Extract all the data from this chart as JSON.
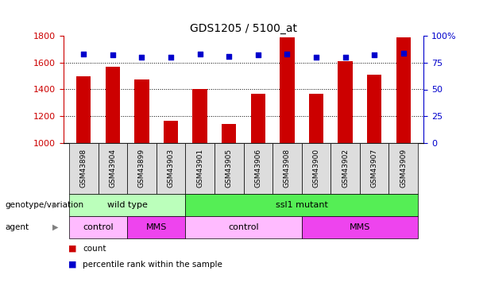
{
  "title": "GDS1205 / 5100_at",
  "samples": [
    "GSM43898",
    "GSM43904",
    "GSM43899",
    "GSM43903",
    "GSM43901",
    "GSM43905",
    "GSM43906",
    "GSM43908",
    "GSM43900",
    "GSM43902",
    "GSM43907",
    "GSM43909"
  ],
  "counts": [
    1500,
    1570,
    1475,
    1165,
    1405,
    1145,
    1370,
    1790,
    1370,
    1610,
    1510,
    1790
  ],
  "percentiles": [
    83,
    82,
    80,
    80,
    83,
    81,
    82,
    83,
    80,
    80,
    82,
    84
  ],
  "ylim_left": [
    1000,
    1800
  ],
  "ylim_right": [
    0,
    100
  ],
  "yticks_left": [
    1000,
    1200,
    1400,
    1600,
    1800
  ],
  "yticks_right": [
    0,
    25,
    50,
    75,
    100
  ],
  "bar_color": "#cc0000",
  "dot_color": "#0000cc",
  "bar_width": 0.5,
  "baseline": 1000,
  "genotype_groups": [
    {
      "label": "wild type",
      "start": 0,
      "end": 3,
      "color": "#bbffbb"
    },
    {
      "label": "ssl1 mutant",
      "start": 4,
      "end": 11,
      "color": "#55ee55"
    }
  ],
  "agent_groups": [
    {
      "label": "control",
      "start": 0,
      "end": 1,
      "color": "#ffbbff"
    },
    {
      "label": "MMS",
      "start": 2,
      "end": 3,
      "color": "#ee44ee"
    },
    {
      "label": "control",
      "start": 4,
      "end": 7,
      "color": "#ffbbff"
    },
    {
      "label": "MMS",
      "start": 8,
      "end": 11,
      "color": "#ee44ee"
    }
  ],
  "legend_count_color": "#cc0000",
  "legend_pct_color": "#0000cc",
  "row_labels": [
    "genotype/variation",
    "agent"
  ],
  "tick_label_color_left": "#cc0000",
  "tick_label_color_right": "#0000cc",
  "xtick_bg_color": "#dddddd",
  "chart_bg_color": "#ffffff"
}
